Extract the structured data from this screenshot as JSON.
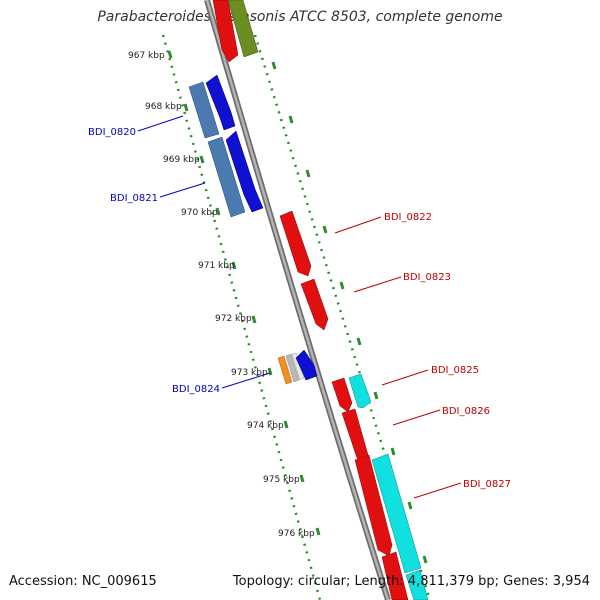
{
  "title": "Parabacteroides distasonis ATCC 8503, complete genome",
  "footer": {
    "accession": "Accession: NC_009615",
    "summary": "Topology: circular; Length: 4,811,379 bp; Genes: 3,954"
  },
  "ruler_labels": [
    "967 kbp",
    "968 kbp",
    "969 kbp",
    "970 kbp",
    "971 kbp",
    "972 kbp",
    "973 kbp",
    "974 kbp",
    "975 kbp",
    "976 kbp"
  ],
  "gene_labels": {
    "left": [
      "BDI_0820",
      "BDI_0821",
      "BDI_0824"
    ],
    "right": [
      "BDI_0822",
      "BDI_0823",
      "BDI_0825",
      "BDI_0826",
      "BDI_0827"
    ]
  },
  "colors": {
    "backbone": "#8a8a8a",
    "ruler_ticks": "#2e8b2e",
    "forward_gene": "#e01010",
    "reverse_gene": "#1010d0",
    "steelblue_gene": "#4a7ab0",
    "cyan_gene": "#10e0e0",
    "olive_gene": "#6b8e23",
    "orange_gene": "#f09020",
    "left_label": "#0000c0",
    "right_label": "#c00000"
  }
}
